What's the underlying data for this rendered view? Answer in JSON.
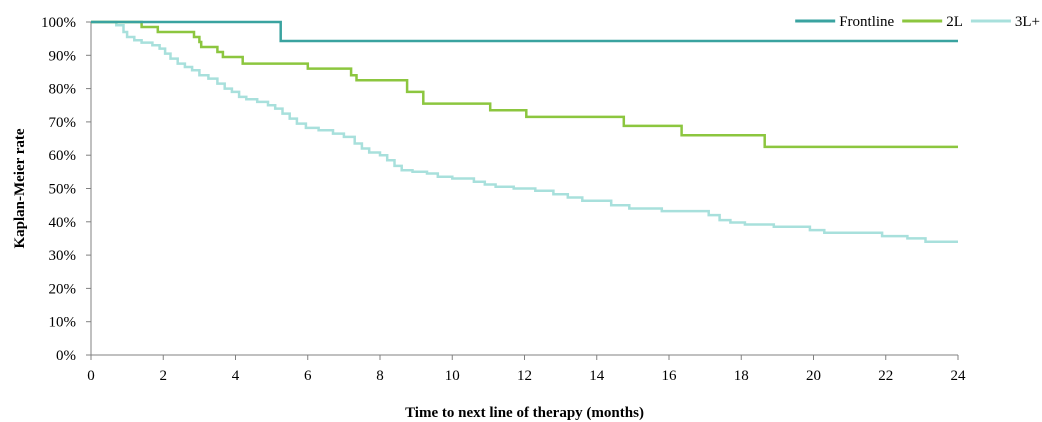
{
  "chart_data": {
    "type": "line",
    "step": true,
    "xlabel": "Time to next line of therapy (months)",
    "ylabel": "Kaplan-Meier rate",
    "xlim": [
      0,
      24
    ],
    "ylim": [
      0,
      1
    ],
    "x_ticks": [
      0,
      2,
      4,
      6,
      8,
      10,
      12,
      14,
      16,
      18,
      20,
      22,
      24
    ],
    "x_tick_labels": [
      "0",
      "2",
      "4",
      "6",
      "8",
      "10",
      "12",
      "14",
      "16",
      "18",
      "20",
      "22",
      "24"
    ],
    "y_ticks": [
      0,
      0.1,
      0.2,
      0.3,
      0.4,
      0.5,
      0.6,
      0.7,
      0.8,
      0.9,
      1.0
    ],
    "y_tick_labels": [
      "0%",
      "10%",
      "20%",
      "30%",
      "40%",
      "50%",
      "60%",
      "70%",
      "80%",
      "90%",
      "100%"
    ],
    "grid": false,
    "legend_position": "top-right",
    "series": [
      {
        "name": "Frontline",
        "color": "#3aa3a0",
        "points": [
          [
            0,
            1.0
          ],
          [
            5.25,
            0.943
          ],
          [
            24,
            0.943
          ]
        ]
      },
      {
        "name": "2L",
        "color": "#8cc63f",
        "points": [
          [
            0,
            1.0
          ],
          [
            1.4,
            0.985
          ],
          [
            1.85,
            0.97
          ],
          [
            2.85,
            0.955
          ],
          [
            3.0,
            0.94
          ],
          [
            3.05,
            0.925
          ],
          [
            3.5,
            0.91
          ],
          [
            3.65,
            0.895
          ],
          [
            4.2,
            0.875
          ],
          [
            6.0,
            0.86
          ],
          [
            7.2,
            0.84
          ],
          [
            7.35,
            0.825
          ],
          [
            8.75,
            0.79
          ],
          [
            9.2,
            0.755
          ],
          [
            11.05,
            0.735
          ],
          [
            12.05,
            0.715
          ],
          [
            14.75,
            0.688
          ],
          [
            16.35,
            0.66
          ],
          [
            18.65,
            0.625
          ],
          [
            24,
            0.625
          ]
        ]
      },
      {
        "name": "3L+",
        "color": "#a8e0dc",
        "points": [
          [
            0,
            1.0
          ],
          [
            0.7,
            0.99
          ],
          [
            0.9,
            0.97
          ],
          [
            1.0,
            0.955
          ],
          [
            1.2,
            0.945
          ],
          [
            1.4,
            0.938
          ],
          [
            1.7,
            0.93
          ],
          [
            1.9,
            0.92
          ],
          [
            2.05,
            0.905
          ],
          [
            2.2,
            0.89
          ],
          [
            2.4,
            0.875
          ],
          [
            2.6,
            0.865
          ],
          [
            2.8,
            0.855
          ],
          [
            3.0,
            0.84
          ],
          [
            3.25,
            0.83
          ],
          [
            3.5,
            0.815
          ],
          [
            3.7,
            0.8
          ],
          [
            3.9,
            0.79
          ],
          [
            4.1,
            0.775
          ],
          [
            4.3,
            0.768
          ],
          [
            4.6,
            0.76
          ],
          [
            4.9,
            0.75
          ],
          [
            5.1,
            0.74
          ],
          [
            5.3,
            0.725
          ],
          [
            5.5,
            0.71
          ],
          [
            5.7,
            0.695
          ],
          [
            5.95,
            0.682
          ],
          [
            6.3,
            0.675
          ],
          [
            6.7,
            0.665
          ],
          [
            7.0,
            0.655
          ],
          [
            7.3,
            0.635
          ],
          [
            7.5,
            0.62
          ],
          [
            7.7,
            0.608
          ],
          [
            8.0,
            0.6
          ],
          [
            8.2,
            0.585
          ],
          [
            8.4,
            0.568
          ],
          [
            8.6,
            0.555
          ],
          [
            8.9,
            0.55
          ],
          [
            9.3,
            0.545
          ],
          [
            9.6,
            0.535
          ],
          [
            10.0,
            0.53
          ],
          [
            10.6,
            0.52
          ],
          [
            10.9,
            0.512
          ],
          [
            11.2,
            0.505
          ],
          [
            11.7,
            0.5
          ],
          [
            12.3,
            0.493
          ],
          [
            12.8,
            0.483
          ],
          [
            13.2,
            0.473
          ],
          [
            13.6,
            0.463
          ],
          [
            14.4,
            0.45
          ],
          [
            14.9,
            0.44
          ],
          [
            15.8,
            0.432
          ],
          [
            17.1,
            0.42
          ],
          [
            17.4,
            0.405
          ],
          [
            17.7,
            0.398
          ],
          [
            18.1,
            0.392
          ],
          [
            18.9,
            0.385
          ],
          [
            19.9,
            0.375
          ],
          [
            20.3,
            0.367
          ],
          [
            21.9,
            0.357
          ],
          [
            22.6,
            0.35
          ],
          [
            23.1,
            0.34
          ],
          [
            24,
            0.34
          ]
        ]
      }
    ]
  }
}
